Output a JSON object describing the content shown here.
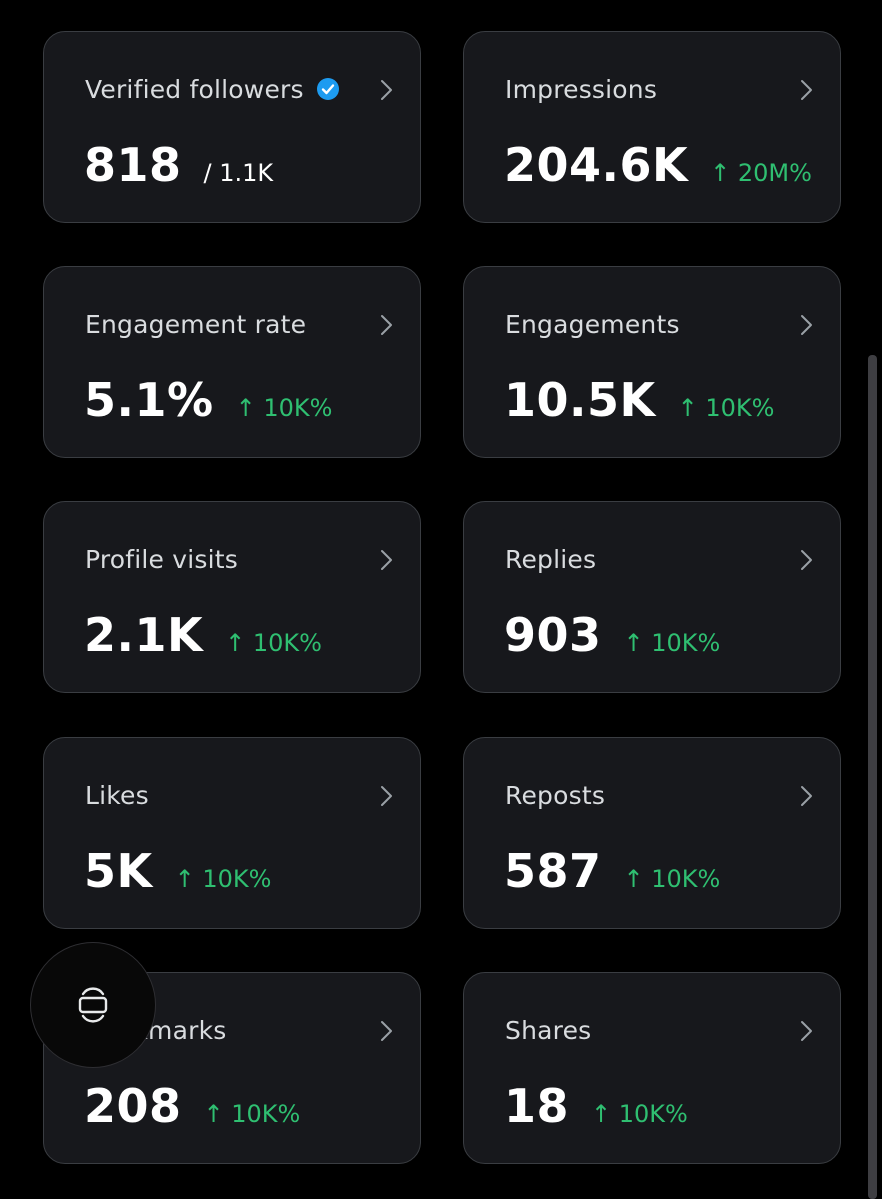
{
  "cards": [
    {
      "label": "Verified followers",
      "value": "818",
      "sub": "/ 1.1K",
      "change": "",
      "verified": true
    },
    {
      "label": "Impressions",
      "value": "204.6K",
      "sub": "",
      "change": "↑ 20M%"
    },
    {
      "label": "Engagement rate",
      "value": "5.1%",
      "sub": "",
      "change": "↑ 10K%"
    },
    {
      "label": "Engagements",
      "value": "10.5K",
      "sub": "",
      "change": "↑ 10K%"
    },
    {
      "label": "Profile visits",
      "value": "2.1K",
      "sub": "",
      "change": "↑ 10K%"
    },
    {
      "label": "Replies",
      "value": "903",
      "sub": "",
      "change": "↑ 10K%"
    },
    {
      "label": "Likes",
      "value": "5K",
      "sub": "",
      "change": "↑ 10K%"
    },
    {
      "label": "Reposts",
      "value": "587",
      "sub": "",
      "change": "↑ 10K%"
    },
    {
      "label": "Bookmarks",
      "value": "208",
      "sub": "",
      "change": "↑ 10K%"
    },
    {
      "label": "Shares",
      "value": "18",
      "sub": "",
      "change": "↑ 10K%"
    }
  ],
  "icons": {
    "chevron": "chevron-right-icon",
    "verified": "verified-badge-icon",
    "fab": "screen-rotate-icon"
  },
  "colors": {
    "background": "#000000",
    "card": "#17181c",
    "card_border": "#3a3d42",
    "positive": "#2fbf71",
    "verified": "#1d9bf0"
  }
}
